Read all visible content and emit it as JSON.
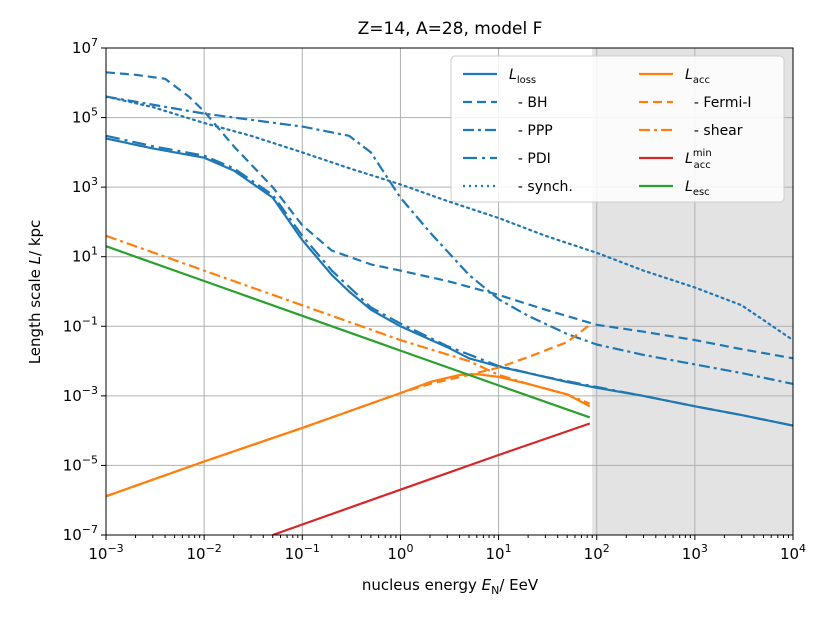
{
  "chart_data": {
    "type": "line",
    "title": "Z=14, A=28, model F",
    "xlabel": {
      "pre": "nucleus energy ",
      "sym": "E",
      "sub": "N",
      "post": "/ EeV"
    },
    "ylabel": {
      "pre": "Length scale ",
      "sym": "L",
      "post": "/ kpc"
    },
    "xscale": "log",
    "yscale": "log",
    "xlim": [
      0.001,
      10000
    ],
    "ylim": [
      1e-07,
      10000000.0
    ],
    "grid": true,
    "x_tick_exponents": [
      -3,
      -2,
      -1,
      0,
      1,
      2,
      3,
      4
    ],
    "y_tick_exponents": [
      -7,
      -5,
      -3,
      -1,
      1,
      3,
      5,
      7
    ],
    "tick_base": "10",
    "shaded_region": {
      "x_from": 90,
      "x_to": 10000,
      "color": "#e3e3e3"
    },
    "legend_location": "upper right",
    "colors": {
      "blue": "#1f77b4",
      "orange": "#ff7f0e",
      "red": "#d62728",
      "green": "#2ca02c"
    },
    "series": [
      {
        "id": "loss",
        "legend": {
          "sym": "L",
          "sub": "loss",
          "sup": ""
        },
        "color": "#1f77b4",
        "dash": "solid",
        "points": [
          [
            0.001,
            25000
          ],
          [
            0.003,
            13000
          ],
          [
            0.01,
            7000
          ],
          [
            0.02,
            3000
          ],
          [
            0.05,
            500
          ],
          [
            0.1,
            30
          ],
          [
            0.2,
            3
          ],
          [
            0.3,
            1
          ],
          [
            0.5,
            0.3
          ],
          [
            1,
            0.1
          ],
          [
            3,
            0.025
          ],
          [
            5,
            0.012
          ],
          [
            10,
            0.007
          ],
          [
            20,
            0.0045
          ],
          [
            50,
            0.0025
          ],
          [
            100,
            0.0017
          ],
          [
            300,
            0.001
          ],
          [
            1000,
            0.0005
          ],
          [
            3000,
            0.00028
          ],
          [
            10000,
            0.00014
          ]
        ]
      },
      {
        "id": "bh",
        "legend": {
          "sym": "",
          "sub": "",
          "sup": "",
          "text": "- BH"
        },
        "color": "#1f77b4",
        "dash": "dashed",
        "points": [
          [
            0.001,
            2000000
          ],
          [
            0.002,
            1700000
          ],
          [
            0.004,
            1300000
          ],
          [
            0.007,
            400000
          ],
          [
            0.01,
            150000
          ],
          [
            0.02,
            15000
          ],
          [
            0.05,
            1000
          ],
          [
            0.1,
            80
          ],
          [
            0.2,
            15
          ],
          [
            0.5,
            6
          ],
          [
            1,
            4
          ],
          [
            3,
            2
          ],
          [
            10,
            0.8
          ],
          [
            30,
            0.3
          ],
          [
            100,
            0.11
          ],
          [
            300,
            0.07
          ],
          [
            1000,
            0.04
          ],
          [
            3000,
            0.022
          ],
          [
            10000,
            0.012
          ]
        ]
      },
      {
        "id": "ppp",
        "legend": {
          "text": "- PPP"
        },
        "color": "#1f77b4",
        "dash": "dashdot",
        "points": [
          [
            0.001,
            400000
          ],
          [
            0.01,
            130000
          ],
          [
            0.1,
            55000
          ],
          [
            0.3,
            30000
          ],
          [
            0.5,
            10000
          ],
          [
            1,
            500
          ],
          [
            2,
            50
          ],
          [
            5,
            3
          ],
          [
            10,
            0.6
          ],
          [
            20,
            0.2
          ],
          [
            50,
            0.06
          ],
          [
            100,
            0.03
          ],
          [
            300,
            0.015
          ],
          [
            1000,
            0.008
          ],
          [
            3000,
            0.0045
          ],
          [
            10000,
            0.0022
          ]
        ]
      },
      {
        "id": "pdi",
        "legend": {
          "text": "- PDI"
        },
        "color": "#1f77b4",
        "dash": "pdi",
        "points": [
          [
            0.001,
            30000
          ],
          [
            0.003,
            15000
          ],
          [
            0.01,
            8000
          ],
          [
            0.02,
            3500
          ],
          [
            0.05,
            600
          ],
          [
            0.1,
            40
          ],
          [
            0.2,
            4
          ],
          [
            0.5,
            0.35
          ],
          [
            1,
            0.12
          ],
          [
            3,
            0.027
          ],
          [
            10,
            0.0072
          ],
          [
            30,
            0.0035
          ],
          [
            100,
            0.0018
          ],
          [
            300,
            0.001
          ],
          [
            1000,
            0.0005
          ],
          [
            3000,
            0.00028
          ],
          [
            10000,
            0.00014
          ]
        ]
      },
      {
        "id": "synch",
        "legend": {
          "text": "- synch."
        },
        "color": "#1f77b4",
        "dash": "dotted",
        "points": [
          [
            0.001,
            400000
          ],
          [
            0.003,
            200000
          ],
          [
            0.01,
            70000
          ],
          [
            0.03,
            30000
          ],
          [
            0.1,
            10000
          ],
          [
            0.3,
            3500
          ],
          [
            1,
            1200
          ],
          [
            3,
            400
          ],
          [
            10,
            130
          ],
          [
            30,
            40
          ],
          [
            100,
            13
          ],
          [
            300,
            4
          ],
          [
            1000,
            1.3
          ],
          [
            3000,
            0.4
          ],
          [
            10000,
            0.04
          ]
        ]
      },
      {
        "id": "acc",
        "legend": {
          "sym": "L",
          "sub": "acc",
          "sup": ""
        },
        "color": "#ff7f0e",
        "dash": "solid",
        "points": [
          [
            0.001,
            1.3e-06
          ],
          [
            0.01,
            1.3e-05
          ],
          [
            0.1,
            0.00012
          ],
          [
            1,
            0.0012
          ],
          [
            2,
            0.0025
          ],
          [
            4,
            0.004
          ],
          [
            6,
            0.0042
          ],
          [
            10,
            0.0035
          ],
          [
            20,
            0.0022
          ],
          [
            50,
            0.0011
          ],
          [
            85,
            0.0005
          ]
        ]
      },
      {
        "id": "fermi",
        "legend": {
          "text": "- Fermi-I"
        },
        "color": "#ff7f0e",
        "dash": "dashed",
        "points": [
          [
            0.001,
            1.3e-06
          ],
          [
            0.01,
            1.3e-05
          ],
          [
            0.1,
            0.00012
          ],
          [
            1,
            0.0012
          ],
          [
            2,
            0.0022
          ],
          [
            5,
            0.004
          ],
          [
            10,
            0.0065
          ],
          [
            20,
            0.013
          ],
          [
            50,
            0.035
          ],
          [
            85,
            0.11
          ]
        ]
      },
      {
        "id": "shear",
        "legend": {
          "text": "- shear"
        },
        "color": "#ff7f0e",
        "dash": "dashdot",
        "points": [
          [
            0.001,
            40
          ],
          [
            0.01,
            4
          ],
          [
            0.1,
            0.4
          ],
          [
            1,
            0.04
          ],
          [
            5,
            0.01
          ],
          [
            10,
            0.004
          ],
          [
            20,
            0.0022
          ],
          [
            50,
            0.0011
          ],
          [
            85,
            0.0006
          ]
        ]
      },
      {
        "id": "accmin",
        "legend": {
          "sym": "L",
          "sub": "acc",
          "sup": "min"
        },
        "color": "#d62728",
        "dash": "solid",
        "points": [
          [
            0.05,
            1e-07
          ],
          [
            0.1,
            2e-07
          ],
          [
            1,
            2e-06
          ],
          [
            10,
            2e-05
          ],
          [
            85,
            0.00016
          ]
        ]
      },
      {
        "id": "esc",
        "legend": {
          "sym": "L",
          "sub": "esc",
          "sup": ""
        },
        "color": "#2ca02c",
        "dash": "solid",
        "points": [
          [
            0.001,
            20
          ],
          [
            0.01,
            2
          ],
          [
            0.1,
            0.2
          ],
          [
            1,
            0.02
          ],
          [
            10,
            0.002
          ],
          [
            85,
            0.00024
          ]
        ]
      }
    ]
  }
}
